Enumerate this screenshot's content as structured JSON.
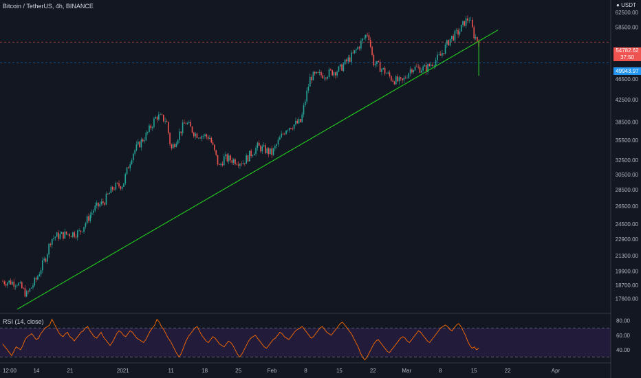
{
  "header": {
    "symbol_title": "Bitcoin / TetherUS, 4h, BINANCE",
    "currency": "USDT"
  },
  "price_labels": {
    "last_price": "54782.62",
    "countdown": "37:50",
    "line_price": "49943.97"
  },
  "rsi_panel": {
    "label": "RSI (14, close)"
  },
  "colors": {
    "background": "#131722",
    "up_candle": "#26a69a",
    "down_candle": "#ef5350",
    "trendline": "#22c31e",
    "rsi_line": "#ff6d00",
    "rsi_band": "#2a1f44",
    "price_tag": "#ef5350",
    "line_tag": "#2196f3"
  },
  "chart_data": [
    {
      "type": "candlestick",
      "title": "Bitcoin / TetherUS, 4h, BINANCE",
      "y_ticks": [
        62500,
        58500,
        46500,
        42500,
        38500,
        35500,
        32500,
        30500,
        28500,
        26500,
        24500,
        22900,
        21300,
        19900,
        18700,
        17600
      ],
      "x_ticks": [
        "12:00",
        "14",
        "21",
        "2021",
        "11",
        "18",
        "25",
        "Feb",
        "8",
        "15",
        "22",
        "Mar",
        "8",
        "15",
        "22",
        "Apr"
      ],
      "ylim": [
        16800,
        66000
      ],
      "y_scale": "log",
      "series": [
        {
          "name": "close",
          "x": [
            "2020-12-07",
            "2020-12-10",
            "2020-12-12",
            "2020-12-14",
            "2020-12-16",
            "2020-12-17",
            "2020-12-18",
            "2020-12-20",
            "2020-12-23",
            "2020-12-26",
            "2020-12-28",
            "2020-12-30",
            "2021-01-01",
            "2021-01-03",
            "2021-01-06",
            "2021-01-08",
            "2021-01-10",
            "2021-01-11",
            "2021-01-14",
            "2021-01-16",
            "2021-01-19",
            "2021-01-21",
            "2021-01-22",
            "2021-01-26",
            "2021-01-29",
            "2021-02-01",
            "2021-02-04",
            "2021-02-07",
            "2021-02-09",
            "2021-02-12",
            "2021-02-15",
            "2021-02-18",
            "2021-02-21",
            "2021-02-22",
            "2021-02-24",
            "2021-02-26",
            "2021-02-28",
            "2021-03-02",
            "2021-03-05",
            "2021-03-08",
            "2021-03-10",
            "2021-03-12",
            "2021-03-13",
            "2021-03-14",
            "2021-03-15",
            "2021-03-16"
          ],
          "y": [
            19000,
            18900,
            17900,
            19200,
            21200,
            22900,
            23200,
            23400,
            23600,
            26200,
            27000,
            28800,
            29200,
            33500,
            36500,
            39500,
            38800,
            34000,
            38500,
            36500,
            36000,
            31500,
            32800,
            32200,
            34500,
            33500,
            37500,
            38500,
            47000,
            47500,
            48500,
            52000,
            57300,
            50200,
            48500,
            46500,
            45800,
            48900,
            48700,
            51500,
            55500,
            57500,
            59800,
            61000,
            56500,
            54782
          ]
        }
      ],
      "trendline": {
        "start": {
          "x": "2020-12-10",
          "y": 16800
        },
        "end": {
          "x": "2021-03-20",
          "y": 57800
        }
      },
      "horizontal_levels": [
        54782.62,
        49943.97
      ],
      "grid": false
    },
    {
      "type": "line",
      "title": "RSI (14, close)",
      "y_ticks": [
        80,
        60,
        40
      ],
      "ylim": [
        22,
        90
      ],
      "bands": [
        30,
        70
      ],
      "series": [
        {
          "name": "",
          "y": [
            48,
            44,
            40,
            36,
            32,
            38,
            44,
            42,
            40,
            46,
            54,
            58,
            60,
            62,
            58,
            54,
            56,
            62,
            66,
            70,
            72,
            74,
            82,
            76,
            70,
            64,
            60,
            58,
            62,
            64,
            58,
            56,
            52,
            56,
            60,
            64,
            66,
            70,
            72,
            66,
            62,
            58,
            56,
            60,
            64,
            58,
            54,
            50,
            46,
            50,
            56,
            62,
            66,
            64,
            60,
            58,
            62,
            66,
            64,
            60,
            56,
            54,
            52,
            50,
            54,
            60,
            66,
            70,
            74,
            82,
            78,
            72,
            68,
            62,
            56,
            52,
            46,
            40,
            34,
            30,
            36,
            44,
            52,
            58,
            62,
            66,
            70,
            72,
            66,
            60,
            56,
            52,
            50,
            54,
            58,
            56,
            52,
            48,
            46,
            44,
            48,
            52,
            50,
            46,
            40,
            34,
            30,
            34,
            40,
            46,
            52,
            56,
            58,
            60,
            56,
            52,
            48,
            44,
            42,
            46,
            50,
            54,
            56,
            60,
            64,
            62,
            58,
            56,
            54,
            58,
            62,
            66,
            68,
            70,
            72,
            68,
            64,
            60,
            56,
            58,
            62,
            66,
            70,
            72,
            68,
            64,
            62,
            60,
            64,
            68,
            72,
            76,
            78,
            74,
            70,
            66,
            62,
            56,
            50,
            44,
            36,
            30,
            26,
            30,
            36,
            42,
            48,
            52,
            54,
            50,
            46,
            42,
            38,
            36,
            40,
            44,
            48,
            52,
            56,
            58,
            56,
            52,
            50,
            54,
            58,
            62,
            66,
            64,
            60,
            56,
            52,
            50,
            54,
            58,
            62,
            66,
            70,
            72,
            74,
            72,
            68,
            66,
            70,
            74,
            76,
            72,
            66,
            60,
            52,
            46,
            42,
            44,
            40,
            42
          ]
        }
      ]
    }
  ]
}
